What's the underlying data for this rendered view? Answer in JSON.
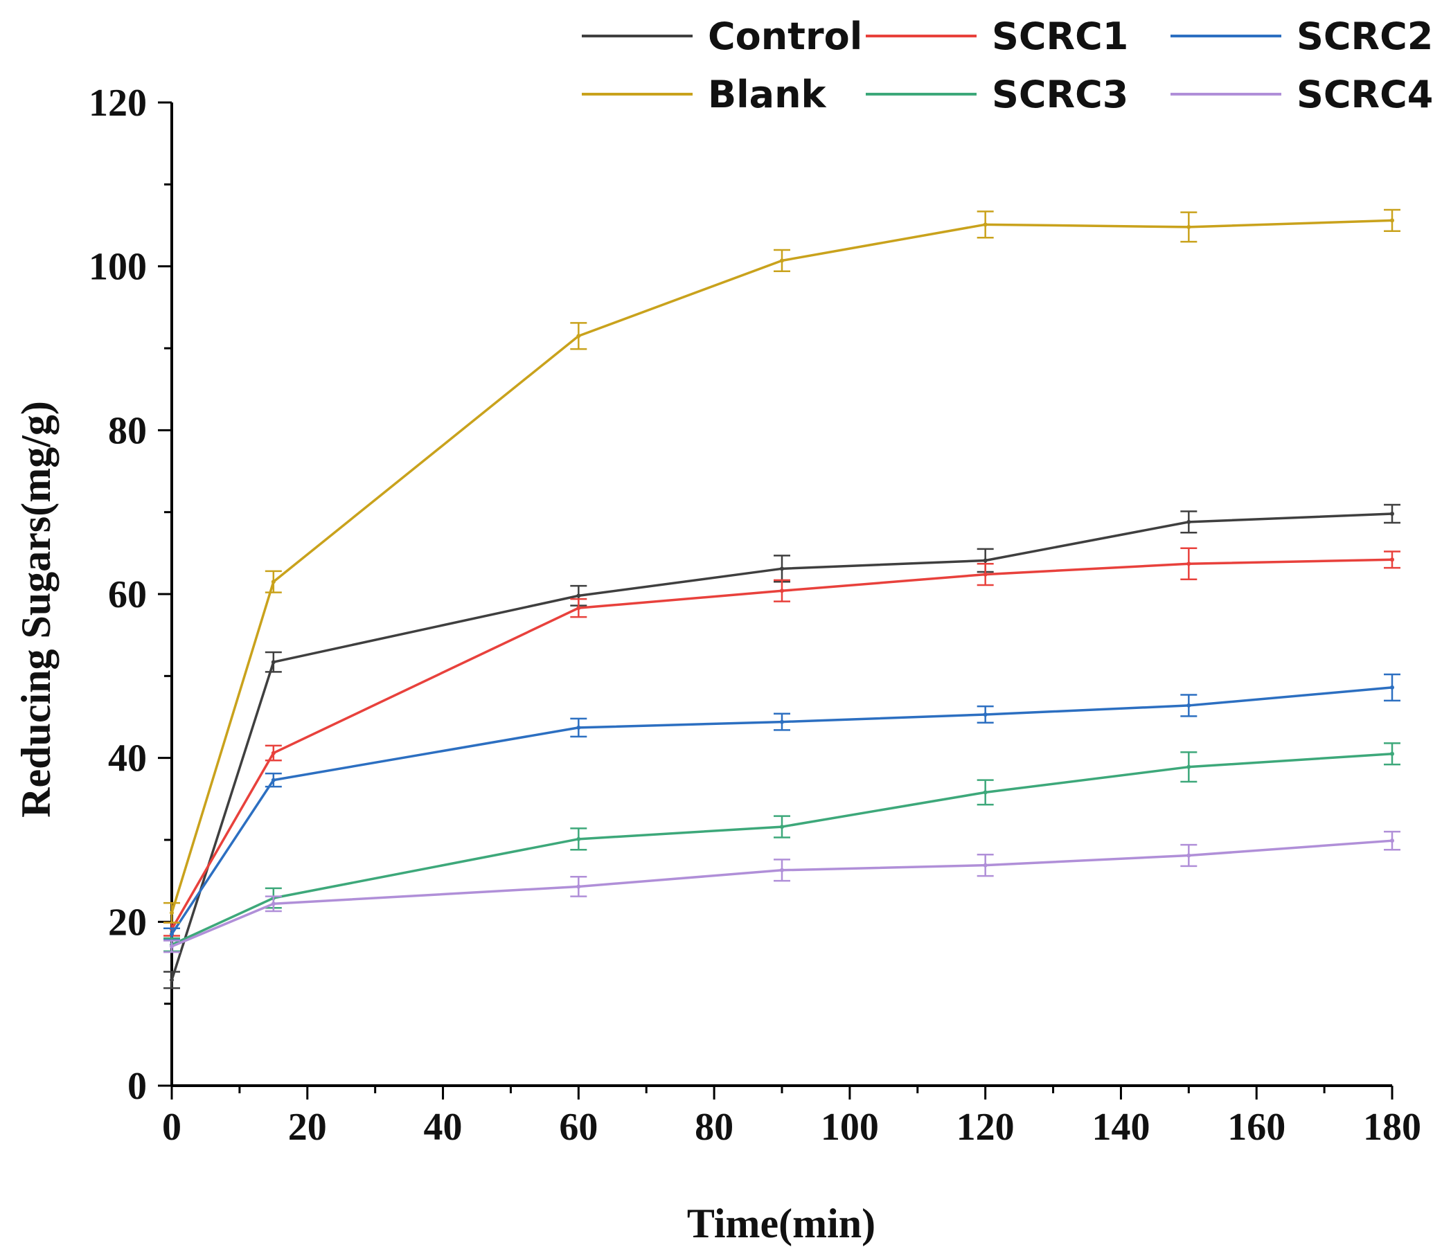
{
  "chart_data": {
    "type": "line",
    "xlabel": "Time(min)",
    "ylabel": "Reducing Sugars(mg/g)",
    "xlim": [
      0,
      180
    ],
    "ylim": [
      0,
      120
    ],
    "xticks": [
      0,
      20,
      40,
      60,
      80,
      100,
      120,
      140,
      160,
      180
    ],
    "yticks": [
      0,
      20,
      40,
      60,
      80,
      100,
      120
    ],
    "grid": false,
    "legend_position": "top",
    "x": [
      0,
      15,
      60,
      90,
      120,
      150,
      180
    ],
    "series": [
      {
        "name": "Control",
        "color": "#3f3f3f",
        "values": [
          12.9,
          51.7,
          59.8,
          63.1,
          64.1,
          68.8,
          69.8
        ],
        "errors": [
          1.0,
          1.2,
          1.2,
          1.6,
          1.4,
          1.3,
          1.1
        ]
      },
      {
        "name": "SCRC1",
        "color": "#e8413c",
        "values": [
          19.1,
          40.6,
          58.3,
          60.4,
          62.4,
          63.7,
          64.2
        ],
        "errors": [
          0.8,
          0.9,
          1.1,
          1.3,
          1.3,
          1.9,
          1.0
        ]
      },
      {
        "name": "SCRC2",
        "color": "#2c6fc1",
        "values": [
          18.5,
          37.3,
          43.7,
          44.4,
          45.3,
          46.4,
          48.6
        ],
        "errors": [
          0.7,
          0.8,
          1.1,
          1.0,
          1.0,
          1.3,
          1.6
        ]
      },
      {
        "name": "Blank",
        "color": "#c9a21c",
        "values": [
          21.1,
          61.5,
          91.5,
          100.7,
          105.1,
          104.8,
          105.6
        ],
        "errors": [
          1.2,
          1.3,
          1.6,
          1.3,
          1.6,
          1.8,
          1.3
        ]
      },
      {
        "name": "SCRC3",
        "color": "#3da87a",
        "values": [
          17.2,
          22.9,
          30.1,
          31.6,
          35.8,
          38.9,
          40.5
        ],
        "errors": [
          0.8,
          1.2,
          1.3,
          1.3,
          1.5,
          1.8,
          1.3
        ]
      },
      {
        "name": "SCRC4",
        "color": "#b08fd8",
        "values": [
          17.0,
          22.2,
          24.3,
          26.3,
          26.9,
          28.1,
          29.9
        ],
        "errors": [
          0.7,
          0.9,
          1.2,
          1.3,
          1.3,
          1.3,
          1.1
        ]
      }
    ]
  }
}
